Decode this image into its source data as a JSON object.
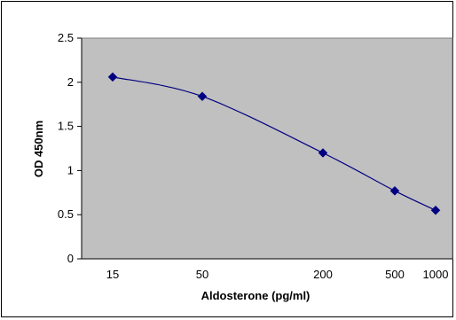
{
  "chart_data": {
    "type": "line",
    "title": "",
    "xlabel": "Aldosterone (pg/ml)",
    "ylabel": "OD 450nm",
    "x_scale": "log",
    "x_ticks": [
      "15",
      "50",
      "200",
      "500",
      "1000"
    ],
    "y_ticks": [
      "0",
      "0.5",
      "1",
      "1.5",
      "2",
      "2.5"
    ],
    "ylim": [
      0,
      2.5
    ],
    "grid": false,
    "legend": "none",
    "series": [
      {
        "x": [
          15,
          50,
          200,
          500,
          1000
        ],
        "y": [
          2.06,
          1.84,
          1.2,
          0.77,
          0.55
        ]
      }
    ],
    "colors": {
      "plot_background": "#c0c0c0",
      "line": "#000080",
      "marker": "#000080"
    }
  }
}
